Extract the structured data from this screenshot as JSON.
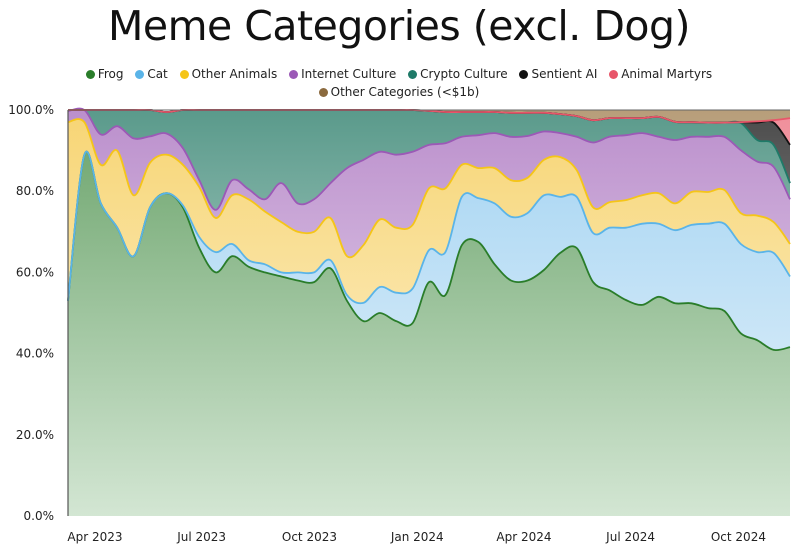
{
  "chart_data": {
    "type": "area",
    "stacked": true,
    "title": "Meme Categories (excl. Dog)",
    "xlabel": "",
    "ylabel": "",
    "ylim": [
      0,
      100
    ],
    "yticks": [
      "0.0%",
      "20.0%",
      "40.0%",
      "60.0%",
      "80.0%",
      "100.0%"
    ],
    "ytick_values": [
      0,
      20,
      40,
      60,
      80,
      100
    ],
    "xticks": [
      {
        "label": "Apr 2023",
        "date": "2023-04-01"
      },
      {
        "label": "Jul 2023",
        "date": "2023-07-01"
      },
      {
        "label": "Oct 2023",
        "date": "2023-10-01"
      },
      {
        "label": "Jan 2024",
        "date": "2024-01-01"
      },
      {
        "label": "Apr 2024",
        "date": "2024-04-01"
      },
      {
        "label": "Jul 2024",
        "date": "2024-07-01"
      },
      {
        "label": "Oct 2024",
        "date": "2024-10-01"
      }
    ],
    "legend_position": "top-center",
    "x": [
      "2023-03-09",
      "2023-03-23",
      "2023-04-06",
      "2023-04-20",
      "2023-05-04",
      "2023-05-18",
      "2023-06-01",
      "2023-06-15",
      "2023-06-29",
      "2023-07-13",
      "2023-07-27",
      "2023-08-10",
      "2023-08-24",
      "2023-09-07",
      "2023-09-21",
      "2023-10-05",
      "2023-10-19",
      "2023-11-02",
      "2023-11-16",
      "2023-11-30",
      "2023-12-14",
      "2023-12-28",
      "2024-01-11",
      "2024-01-25",
      "2024-02-08",
      "2024-02-22",
      "2024-03-07",
      "2024-03-21",
      "2024-04-04",
      "2024-04-18",
      "2024-05-02",
      "2024-05-16",
      "2024-05-30",
      "2024-06-13",
      "2024-06-27",
      "2024-07-11",
      "2024-07-25",
      "2024-08-08",
      "2024-08-22",
      "2024-09-05",
      "2024-09-19",
      "2024-10-03",
      "2024-10-17",
      "2024-10-31",
      "2024-11-14"
    ],
    "series": [
      {
        "name": "Frog",
        "color": "#2a7d2a",
        "fill_top": "#6aa36a",
        "fill_bottom": "#d3e6d3",
        "values": [
          53,
          89,
          77,
          71,
          64,
          76,
          79.5,
          76,
          66,
          60,
          64,
          61.4,
          60,
          59,
          58,
          57.6,
          61,
          53,
          48,
          50,
          48,
          47.5,
          57.6,
          54.4,
          66.7,
          67.5,
          62,
          58,
          58,
          60.6,
          64.8,
          66,
          57.6,
          55.6,
          53.2,
          52,
          54,
          52.4,
          52.4,
          51.2,
          50.5,
          45,
          43.3,
          40.9,
          41.6
        ]
      },
      {
        "name": "Cat",
        "color": "#5ab4e8",
        "fill_top": "#a2d3f2",
        "fill_bottom": "#eaf4fb",
        "values": [
          0,
          0,
          0,
          0,
          0,
          0,
          0,
          0.5,
          2.7,
          5,
          3,
          1.6,
          2,
          1,
          2,
          2.4,
          2,
          1.4,
          4.5,
          6.4,
          7,
          8.5,
          7.9,
          10.6,
          11.9,
          10.8,
          15,
          15.7,
          16.6,
          18.4,
          13.8,
          12.6,
          12.1,
          15.4,
          17.8,
          20,
          18,
          18,
          19.3,
          20.8,
          21.5,
          22,
          21.7,
          23.9,
          17.4
        ]
      },
      {
        "name": "Other Animals",
        "color": "#f5c518",
        "fill_top": "#f7d574",
        "fill_bottom": "#fdf4da",
        "values": [
          44,
          8,
          9.5,
          19,
          15,
          11,
          9.5,
          10,
          12.3,
          8.4,
          12,
          15,
          13,
          12.4,
          10,
          10,
          10.4,
          9.6,
          14.2,
          16.6,
          16,
          15.7,
          15.2,
          15.7,
          7.9,
          7.4,
          8.7,
          9,
          8.7,
          8.7,
          9.8,
          6.6,
          6.3,
          6.3,
          6.8,
          7,
          7.5,
          6.6,
          8.1,
          7.8,
          8.3,
          7.6,
          9,
          7.6,
          8
        ]
      },
      {
        "name": "Internet Culture",
        "color": "#9b59b6",
        "fill_top": "#bb8fcc",
        "fill_bottom": "#f0e6f4",
        "values": [
          2.7,
          3,
          7.5,
          6,
          14,
          6.5,
          5.2,
          4.1,
          1.7,
          2,
          3.7,
          2.5,
          3,
          9.6,
          7,
          8,
          8.6,
          21.7,
          21,
          16.7,
          18,
          18,
          10.7,
          11.1,
          6.9,
          8.1,
          8.6,
          10.7,
          10.3,
          7,
          5.9,
          8.2,
          16,
          16.1,
          16,
          15.3,
          13.9,
          15.6,
          13.6,
          13.6,
          13.1,
          15.5,
          13.3,
          13.6,
          11
        ]
      },
      {
        "name": "Crypto Culture",
        "color": "#1f7a68",
        "fill_top": "#5a9a8b",
        "fill_bottom": "#e0eee9",
        "values": [
          0.3,
          0,
          6,
          4,
          7,
          6.5,
          5.3,
          9.4,
          17.3,
          24.6,
          17.3,
          19.5,
          22,
          18,
          23,
          22,
          18,
          14.3,
          12.3,
          10.3,
          11,
          10.3,
          8.4,
          7.7,
          6.1,
          5.7,
          5.2,
          5.9,
          5.7,
          4.6,
          4.7,
          5.1,
          5.5,
          4.6,
          4.2,
          3.7,
          4.9,
          4.5,
          3.6,
          3.5,
          3.5,
          6.7,
          5.3,
          5.4,
          4
        ]
      },
      {
        "name": "Sentient AI",
        "color": "#111111",
        "fill_top": "#4a4a4a",
        "fill_bottom": "#d0d0d0",
        "values": [
          0,
          0,
          0,
          0,
          0,
          0,
          0,
          0,
          0,
          0,
          0,
          0,
          0,
          0,
          0,
          0,
          0,
          0,
          0,
          0,
          0,
          0,
          0,
          0,
          0,
          0,
          0,
          0,
          0,
          0,
          0,
          0,
          0,
          0,
          0,
          0,
          0,
          0,
          0,
          0,
          0,
          0.2,
          4.3,
          5.5,
          9.4
        ]
      },
      {
        "name": "Animal Martyrs",
        "color": "#e8566a",
        "fill_top": "#f08f9b",
        "fill_bottom": "#f8c6cc",
        "values": [
          0,
          0,
          0,
          0,
          0,
          0,
          0,
          0,
          0,
          0,
          0,
          0,
          0,
          0,
          0,
          0,
          0,
          0,
          0,
          0,
          0,
          0,
          0,
          0,
          0,
          0,
          0,
          0,
          0,
          0,
          0,
          0,
          0,
          0,
          0,
          0,
          0,
          0,
          0,
          0,
          0,
          0,
          0.3,
          0.6,
          6.6
        ]
      },
      {
        "name": "Other Categories (<$1b)",
        "color": "#8b6a3e",
        "fill_top": "#b79e7a",
        "fill_bottom": "#e6dccb",
        "values": [
          0,
          0,
          0,
          0,
          0,
          0,
          0,
          0,
          0,
          0,
          0,
          0,
          0,
          0,
          0,
          0,
          0,
          0,
          0,
          0,
          0,
          0,
          0.2,
          0.5,
          0.5,
          0.5,
          0.5,
          0.7,
          0.7,
          0.7,
          1,
          1.5,
          2.5,
          2,
          2,
          2,
          1.7,
          2.9,
          3,
          3.1,
          3.1,
          3,
          2.8,
          2.5,
          2
        ]
      }
    ]
  }
}
